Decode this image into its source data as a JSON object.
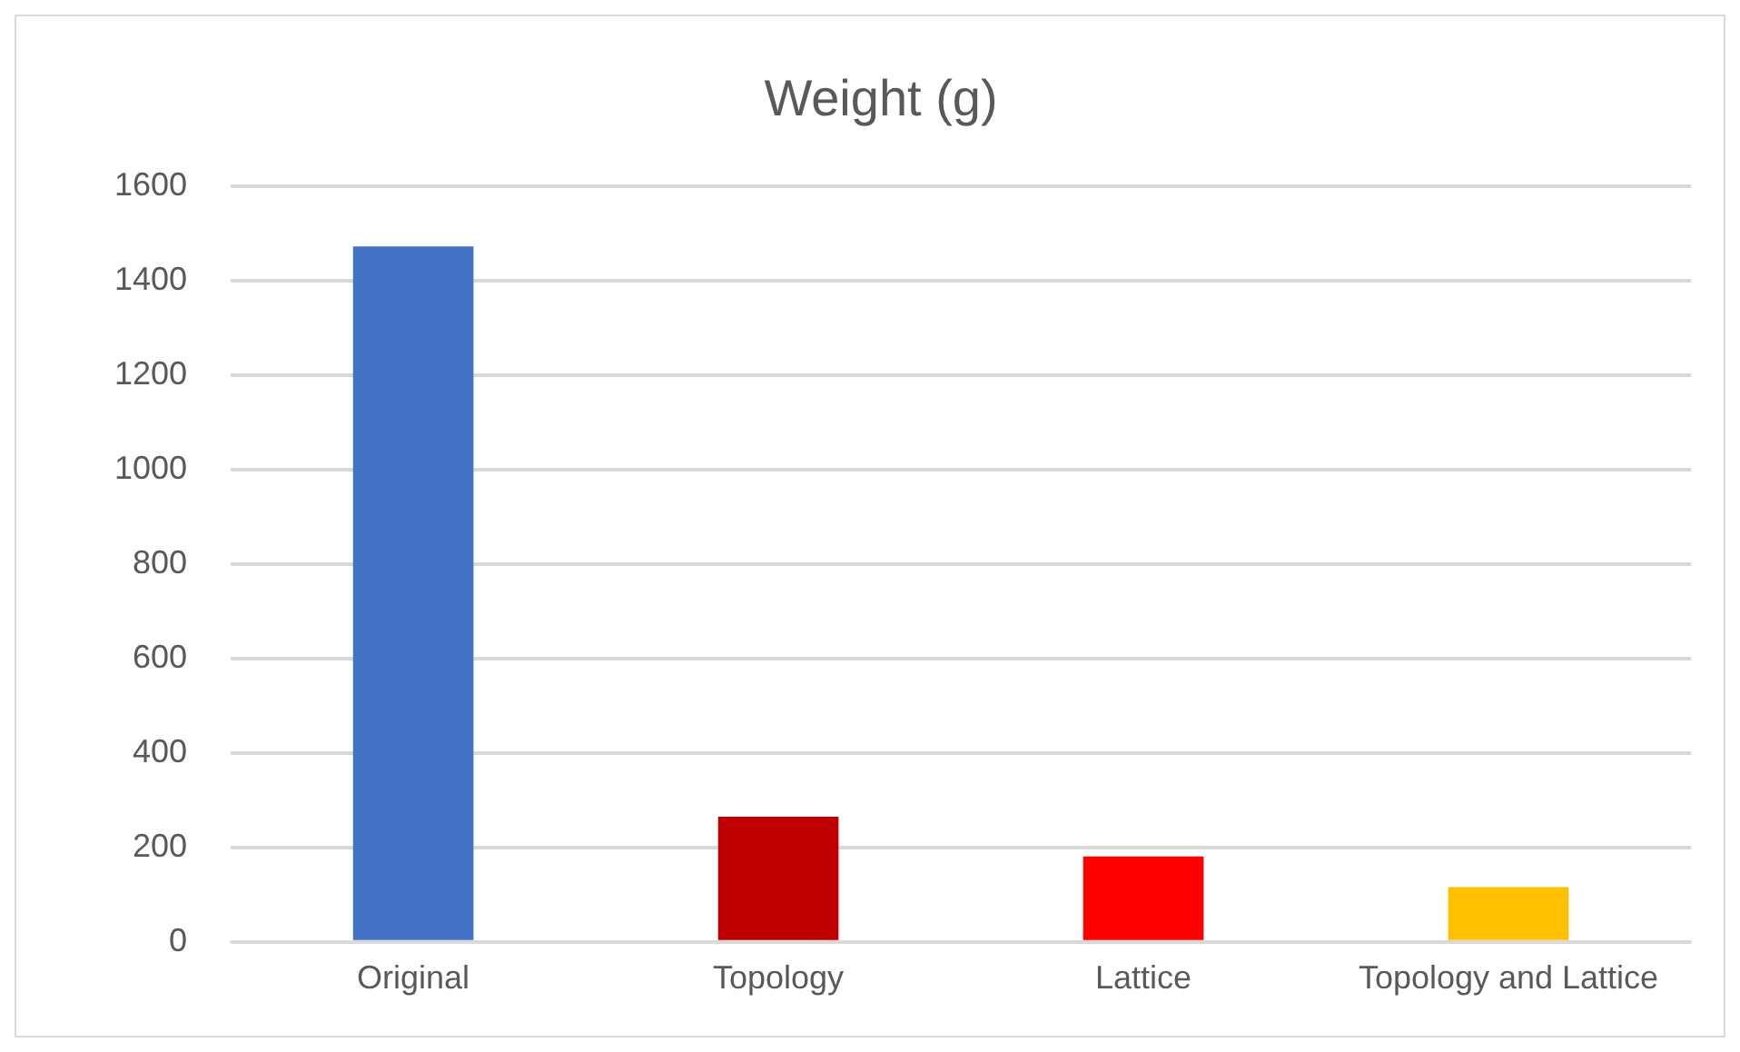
{
  "chart_data": {
    "type": "bar",
    "title": "Weight (g)",
    "categories": [
      "Original",
      "Topology",
      "Lattice",
      "Topology and Lattice"
    ],
    "values": [
      1473,
      265,
      181,
      116
    ],
    "colors": [
      "#4472c4",
      "#c00000",
      "#ff0000",
      "#ffc000"
    ],
    "ylim": [
      0,
      1600
    ],
    "yticks": [
      0,
      200,
      400,
      600,
      800,
      1000,
      1200,
      1400,
      1600
    ],
    "grid": "y",
    "legend": false
  }
}
